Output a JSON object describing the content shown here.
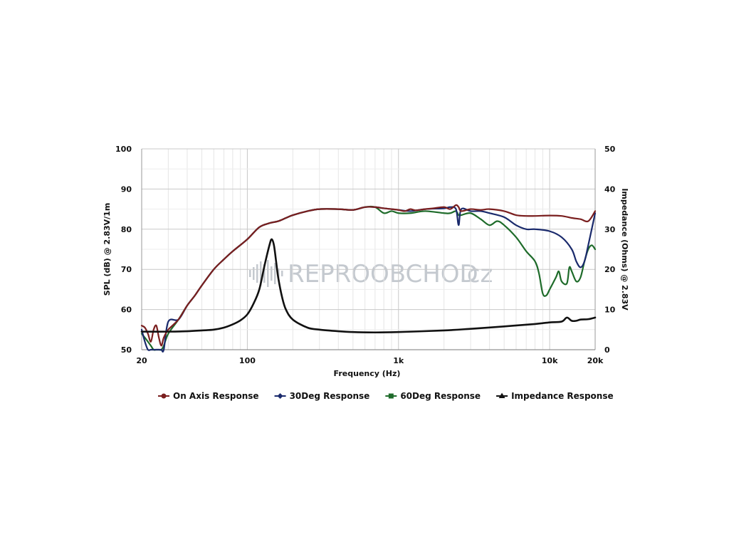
{
  "watermark": {
    "text": "REPROOBCHOD",
    "suffix": ".cz"
  },
  "chart_data": {
    "type": "line",
    "title": "",
    "xlabel": "Frequency (Hz)",
    "ylabel": "SPL (dB) @ 2.83V/1m",
    "y2label": "Impedance (Ohms) @ 2.83V",
    "x_scale": "log",
    "xlim": [
      20,
      20000
    ],
    "ylim": [
      50,
      100
    ],
    "y2lim": [
      0,
      50
    ],
    "grid": true,
    "legend_position": "bottom",
    "x_ticks": [
      {
        "value": 20,
        "label": "20"
      },
      {
        "value": 100,
        "label": "100"
      },
      {
        "value": 1000,
        "label": "1k"
      },
      {
        "value": 10000,
        "label": "10k"
      },
      {
        "value": 20000,
        "label": "20k"
      }
    ],
    "y_ticks": [
      "50",
      "60",
      "70",
      "80",
      "90",
      "100"
    ],
    "y2_ticks": [
      "0",
      "10",
      "20",
      "30",
      "40",
      "50"
    ],
    "series": [
      {
        "name": "On Axis Response",
        "axis": "left",
        "color": "#7a1f1f",
        "marker": "circle",
        "x": [
          20,
          21,
          22,
          23,
          24,
          25,
          26,
          27,
          28,
          30,
          35,
          40,
          45,
          50,
          60,
          70,
          80,
          100,
          120,
          140,
          160,
          180,
          200,
          250,
          300,
          400,
          500,
          600,
          700,
          800,
          900,
          1000,
          1100,
          1200,
          1300,
          1500,
          1700,
          2000,
          2200,
          2400,
          2500,
          2600,
          3000,
          3500,
          4000,
          5000,
          6000,
          7000,
          8000,
          10000,
          12000,
          14000,
          16000,
          18000,
          20000
        ],
        "y": [
          56,
          55.5,
          54,
          52,
          55,
          56,
          53,
          51,
          53,
          55,
          57.5,
          61,
          63.5,
          66,
          70,
          72.5,
          74.5,
          77.5,
          80.5,
          81.5,
          82,
          82.8,
          83.5,
          84.5,
          85,
          85,
          84.8,
          85.5,
          85.5,
          85.2,
          85,
          84.8,
          84.5,
          85,
          84.7,
          85,
          85.2,
          85.5,
          85,
          86,
          85.5,
          84.5,
          85,
          84.8,
          85,
          84.5,
          83.5,
          83.3,
          83.3,
          83.4,
          83.3,
          82.8,
          82.5,
          82,
          84.5
        ]
      },
      {
        "name": "30Deg Response",
        "axis": "left",
        "color": "#1a2a6c",
        "marker": "diamond",
        "x": [
          20,
          21,
          22,
          23,
          24,
          25,
          26,
          27,
          28,
          30,
          35,
          40,
          45,
          50,
          60,
          70,
          80,
          100,
          120,
          140,
          160,
          180,
          200,
          250,
          300,
          400,
          500,
          600,
          700,
          800,
          900,
          1000,
          1200,
          1500,
          2000,
          2200,
          2400,
          2500,
          2600,
          3000,
          3500,
          4000,
          5000,
          6000,
          7000,
          8000,
          10000,
          12000,
          14000,
          15000,
          16000,
          17000,
          18000,
          20000
        ],
        "y": [
          55,
          52,
          50,
          50,
          50,
          50,
          50,
          50,
          50,
          57,
          57.5,
          61,
          63.5,
          66,
          70,
          72.5,
          74.5,
          77.5,
          80.5,
          81.5,
          82,
          82.8,
          83.5,
          84.5,
          85,
          85,
          84.8,
          85.5,
          85.5,
          85.2,
          85,
          84.8,
          84.5,
          85,
          85.2,
          85.5,
          85,
          81,
          85,
          84.5,
          84.5,
          84,
          83,
          81,
          80,
          80,
          79.5,
          78,
          75,
          72,
          70.5,
          72,
          76,
          84
        ]
      },
      {
        "name": "60Deg Response",
        "axis": "left",
        "color": "#1e6b2a",
        "marker": "square",
        "x": [
          20,
          21,
          22,
          23,
          24,
          25,
          26,
          27,
          28,
          30,
          35,
          40,
          45,
          50,
          60,
          70,
          80,
          100,
          120,
          140,
          160,
          180,
          200,
          250,
          300,
          400,
          500,
          600,
          700,
          800,
          900,
          1000,
          1200,
          1500,
          2000,
          2200,
          2400,
          2500,
          2600,
          3000,
          3500,
          4000,
          4500,
          5000,
          6000,
          7000,
          8000,
          8500,
          9000,
          9500,
          10000,
          11000,
          11500,
          12000,
          13000,
          13500,
          14000,
          15000,
          16000,
          17000,
          18000,
          19000,
          20000
        ],
        "y": [
          54,
          53,
          52,
          51,
          50,
          50,
          50,
          50,
          51,
          54,
          57.5,
          61,
          63.5,
          66,
          70,
          72.5,
          74.5,
          77.5,
          80.5,
          81.5,
          82,
          82.8,
          83.5,
          84.5,
          85,
          85,
          84.8,
          85.5,
          85.5,
          84,
          84.5,
          84,
          84,
          84.5,
          84,
          84,
          84.5,
          83.5,
          83.5,
          84,
          82.5,
          81,
          82,
          81,
          78,
          74.5,
          72,
          69,
          64,
          63.5,
          65,
          68,
          69.5,
          67,
          66.5,
          70.5,
          69.5,
          67,
          68,
          72,
          75,
          76,
          75
        ]
      },
      {
        "name": "Impedance Response",
        "axis": "right",
        "color": "#111111",
        "marker": "triangle",
        "x": [
          20,
          30,
          40,
          50,
          60,
          70,
          80,
          90,
          100,
          110,
          120,
          130,
          140,
          145,
          150,
          155,
          160,
          170,
          180,
          200,
          250,
          300,
          400,
          500,
          700,
          1000,
          2000,
          3000,
          5000,
          8000,
          10000,
          12000,
          13000,
          14000,
          15000,
          16000,
          18000,
          20000
        ],
        "y": [
          4.5,
          4.5,
          4.6,
          4.8,
          5,
          5.5,
          6.3,
          7.3,
          8.8,
          11.5,
          15,
          21,
          26,
          27.5,
          26,
          22,
          18,
          13,
          10,
          7.5,
          5.5,
          5,
          4.6,
          4.4,
          4.3,
          4.4,
          4.8,
          5.2,
          5.8,
          6.4,
          6.8,
          7,
          8,
          7.2,
          7.2,
          7.5,
          7.6,
          8
        ]
      }
    ]
  }
}
